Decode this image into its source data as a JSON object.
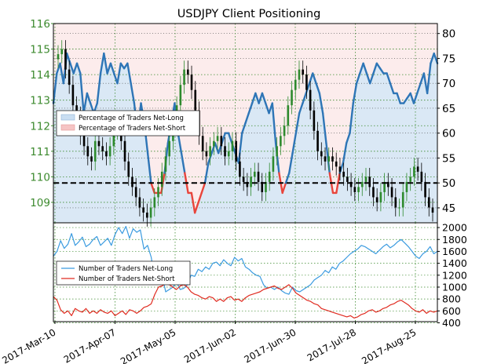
{
  "chart_data": [
    {
      "type": "line",
      "title": "USDJPY Client Positioning",
      "description_of_axes": "left axis = USDJPY price (candlesticks), right axis = percentage of traders net-long",
      "y_left": {
        "ticks": [
          109,
          110,
          111,
          112,
          113,
          114,
          115,
          116
        ],
        "range": [
          108.2,
          116.0
        ]
      },
      "y_right": {
        "ticks": [
          45,
          50,
          55,
          60,
          65,
          70,
          75,
          80
        ],
        "range": [
          42,
          82
        ]
      },
      "reference_line_pct": 50,
      "legend": {
        "position": "center-left",
        "entries": [
          "Percentage of Traders Net-Long",
          "Percentage of Traders Net-Short"
        ]
      },
      "colors": {
        "long": "#2e75b6",
        "short": "#e8453c",
        "up_candle": "#2d8a2d",
        "down_candle": "#000000",
        "fill_long": "#d6e8f6",
        "fill_short": "#fbdcdc"
      },
      "series": [
        {
          "name": "Percentage of Traders Net-Long",
          "values": [
            66,
            72,
            74,
            70,
            76,
            74,
            72,
            74,
            72,
            64,
            68,
            66,
            64,
            66,
            72,
            76,
            72,
            74,
            72,
            70,
            74,
            73,
            74,
            70,
            66,
            60,
            66,
            62,
            56,
            50,
            48,
            48,
            48,
            52,
            58,
            62,
            66,
            60,
            56,
            52,
            48,
            48,
            44,
            46,
            48,
            50,
            54,
            56,
            58,
            56,
            58,
            60,
            60,
            58,
            56,
            54,
            60,
            62,
            64,
            66,
            68,
            66,
            68,
            66,
            64,
            66,
            58,
            52,
            48,
            50,
            52,
            56,
            60,
            64,
            66,
            68,
            70,
            72,
            70,
            68,
            64,
            58,
            52,
            48,
            48,
            52,
            54,
            58,
            60,
            66,
            70,
            72,
            74,
            72,
            70,
            72,
            74,
            73,
            72,
            72,
            70,
            68,
            68,
            66,
            66,
            67,
            68,
            66,
            68,
            70,
            72,
            68,
            74,
            76,
            74
          ]
        },
        {
          "name": "USDJPY",
          "type": "candlestick",
          "ohlc_close": [
            114.8,
            115.0,
            114.2,
            113.6,
            112.8,
            112.4,
            111.6,
            111.2,
            110.8,
            110.6,
            111.4,
            111.2,
            111.0,
            110.8,
            111.2,
            111.8,
            112.0,
            111.4,
            110.6,
            110.0,
            109.6,
            109.2,
            108.8,
            108.6,
            108.4,
            108.8,
            109.2,
            109.6,
            110.2,
            110.8,
            111.4,
            112.2,
            112.8,
            113.6,
            114.2,
            114.0,
            113.4,
            112.6,
            111.6,
            111.0,
            110.8,
            111.2,
            111.4,
            111.6,
            111.2,
            110.8,
            111.0,
            111.4,
            110.6,
            110.0,
            109.8,
            109.6,
            110.0,
            110.2,
            109.8,
            109.4,
            109.8,
            110.2,
            110.8,
            111.2,
            111.6,
            112.0,
            112.8,
            113.4,
            113.8,
            114.2,
            114.0,
            113.4,
            112.6,
            111.8,
            111.0,
            110.8,
            110.6,
            110.8,
            110.6,
            110.4,
            110.2,
            110.0,
            109.8,
            109.6,
            109.4,
            109.6,
            109.8,
            110.0,
            109.6,
            109.2,
            109.0,
            109.4,
            109.8,
            109.6,
            109.2,
            108.8,
            108.8,
            109.4,
            109.8,
            110.0,
            110.4,
            110.2,
            109.8,
            109.2,
            108.8,
            108.6
          ]
        }
      ]
    },
    {
      "type": "line",
      "y_ticks": [
        400,
        600,
        800,
        1000,
        1200,
        1400,
        1600,
        1800,
        2000
      ],
      "y_range": [
        420,
        2080
      ],
      "x_tick_labels": [
        "2017-Mar-10",
        "2017-Apr-07",
        "2017-May-05",
        "2017-Jun-02",
        "2017-Jun-30",
        "2017-Jul-28",
        "2017-Aug-25"
      ],
      "legend": {
        "position": "left",
        "entries": [
          "Number of Traders Net-Long",
          "Number of Traders Net-Short"
        ]
      },
      "series": [
        {
          "name": "Number of Traders Net-Long",
          "values": [
            1520,
            1600,
            1780,
            1650,
            1720,
            1900,
            1700,
            1760,
            1840,
            1680,
            1720,
            1800,
            1850,
            1700,
            1760,
            1820,
            1700,
            1880,
            2000,
            1900,
            2020,
            1820,
            1980,
            1920,
            1960,
            1640,
            1700,
            1500,
            1120,
            1050,
            1200,
            920,
            960,
            1000,
            1080,
            960,
            980,
            1040,
            1200,
            1180,
            1300,
            1260,
            1340,
            1300,
            1400,
            1420,
            1360,
            1460,
            1400,
            1360,
            1500,
            1440,
            1480,
            1340,
            1300,
            1240,
            1200,
            1180,
            1040,
            980,
            1000,
            960,
            1000,
            940,
            900,
            880,
            1000,
            940,
            920,
            960,
            1000,
            1040,
            1120,
            1160,
            1200,
            1280,
            1240,
            1340,
            1300,
            1400,
            1440,
            1500,
            1560,
            1600,
            1640,
            1700,
            1680,
            1640,
            1600,
            1560,
            1620,
            1680,
            1720,
            1660,
            1700,
            1760,
            1800,
            1740,
            1680,
            1600,
            1520,
            1480,
            1560,
            1600,
            1680,
            1560,
            1600
          ]
        },
        {
          "name": "Number of Traders Net-Short",
          "values": [
            840,
            780,
            620,
            560,
            600,
            520,
            640,
            600,
            580,
            640,
            560,
            600,
            560,
            620,
            580,
            560,
            600,
            520,
            560,
            600,
            540,
            620,
            600,
            560,
            600,
            660,
            680,
            720,
            880,
            1000,
            1020,
            1060,
            1040,
            1000,
            960,
            1020,
            1040,
            1000,
            920,
            880,
            860,
            820,
            800,
            840,
            820,
            760,
            800,
            760,
            820,
            840,
            780,
            800,
            760,
            820,
            860,
            880,
            900,
            920,
            960,
            980,
            1000,
            1020,
            980,
            960,
            1000,
            1040,
            980,
            900,
            860,
            820,
            780,
            760,
            720,
            700,
            640,
            620,
            600,
            580,
            560,
            540,
            520,
            500,
            520,
            480,
            500,
            540,
            560,
            600,
            620,
            580,
            600,
            640,
            660,
            700,
            720,
            760,
            780,
            740,
            700,
            640,
            600,
            580,
            620,
            560,
            600,
            580,
            600
          ]
        }
      ]
    }
  ]
}
